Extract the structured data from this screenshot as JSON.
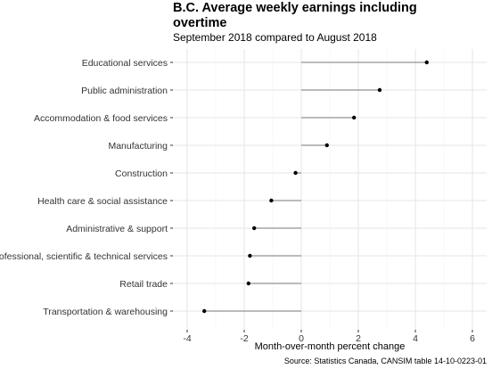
{
  "chart_data": {
    "type": "lollipop",
    "title": "B.C. Average weekly earnings including overtime",
    "subtitle": "September 2018 compared to August 2018",
    "xlabel": "Month-over-month percent change",
    "ylabel": "",
    "xlim": [
      -4.5,
      6.5
    ],
    "xticks": [
      -4,
      -2,
      0,
      2,
      4,
      6
    ],
    "grid": true,
    "categories": [
      "Educational services",
      "Public administration",
      "Accommodation & food services",
      "Manufacturing",
      "Construction",
      "Health care & social assistance",
      "Administrative & support",
      "Professional, scientific & technical services",
      "Retail trade",
      "Transportation & warehousing"
    ],
    "values": [
      4.4,
      2.75,
      1.85,
      0.9,
      -0.2,
      -1.05,
      -1.65,
      -1.8,
      -1.85,
      -3.4
    ],
    "source": "Source: Statistics Canada, CANSIM table 14-10-0223-01"
  }
}
